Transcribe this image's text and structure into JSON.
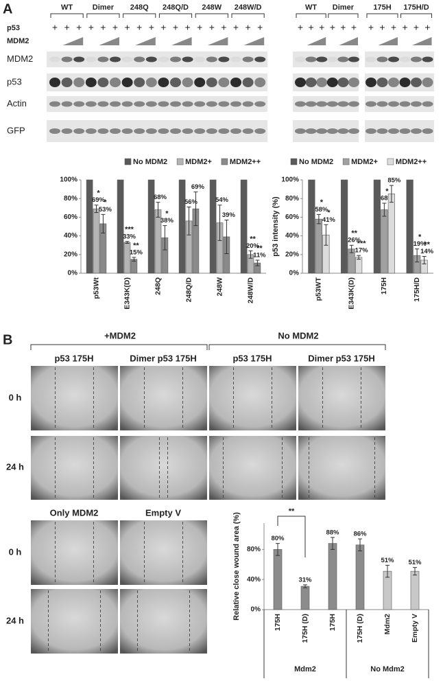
{
  "panel_labels": [
    "A",
    "B"
  ],
  "blot": {
    "treatments": [
      "p53",
      "MDM2"
    ],
    "plus": "+",
    "left_groups": [
      "WT",
      "Dimer",
      "248Q",
      "248Q/D",
      "248W",
      "248W/D"
    ],
    "right_groups": [
      "WT",
      "Dimer",
      "175H",
      "175H/D"
    ],
    "rows": [
      "MDM2",
      "p53",
      "Actin",
      "GFP"
    ]
  },
  "wound": {
    "conditions": [
      "+MDM2",
      "No MDM2"
    ],
    "columns": [
      "p53 175H",
      "Dimer p53 175H",
      "p53 175H",
      "Dimer p53 175H"
    ],
    "times": [
      "0 h",
      "24 h"
    ],
    "lower_columns": [
      "Only MDM2",
      "Empty V"
    ]
  },
  "chart_data": [
    {
      "type": "bar",
      "categories": [
        "p53Wt",
        "E343K(D)",
        "248Q",
        "248Q/D",
        "248W",
        "248W/D"
      ],
      "series": [
        {
          "name": "No MDM2",
          "color": "#5a5a5a",
          "values": [
            100,
            100,
            100,
            100,
            100,
            100
          ]
        },
        {
          "name": "MDM2+",
          "color": "#b4b4b4",
          "values": [
            69,
            33,
            68,
            56,
            54,
            20
          ],
          "errors": [
            4,
            1,
            8,
            15,
            19,
            4
          ],
          "value_labels": [
            "69%",
            "33%",
            "68%",
            "56%",
            "54%",
            "20%"
          ],
          "significance": [
            "*",
            "***",
            null,
            null,
            null,
            "**"
          ]
        },
        {
          "name": "MDM2++",
          "color": "#8a8a8a",
          "values": [
            53,
            15,
            38,
            69,
            39,
            11
          ],
          "errors": [
            10,
            2,
            13,
            18,
            18,
            3
          ],
          "value_labels": [
            "53%",
            "15%",
            "38%",
            "69%",
            "39%",
            "11%"
          ],
          "significance": [
            "*",
            "**",
            "*",
            null,
            null,
            "**"
          ]
        }
      ],
      "ylim": [
        0,
        100
      ],
      "yticks": [
        {
          "value": 0,
          "label": "0%"
        },
        {
          "value": 20,
          "label": "20%"
        },
        {
          "value": 40,
          "label": "40%"
        },
        {
          "value": 60,
          "label": "60%"
        },
        {
          "value": 80,
          "label": "80%"
        },
        {
          "value": 100,
          "label": "100%"
        }
      ]
    },
    {
      "type": "bar",
      "y_label": "p53 intensity (%)",
      "categories": [
        "p53WT",
        "E343K(D)",
        "175H",
        "175H/D"
      ],
      "series": [
        {
          "name": "No MDM2",
          "color": "#5a5a5a",
          "values": [
            100,
            100,
            100,
            100
          ]
        },
        {
          "name": "MDM2+",
          "color": "#a0a0a0",
          "values": [
            58,
            26,
            68,
            19
          ],
          "errors": [
            5,
            4,
            7,
            7
          ],
          "value_labels": [
            "58%",
            "26%",
            "68%",
            "19%"
          ],
          "significance": [
            "*",
            "**",
            "*",
            "*"
          ]
        },
        {
          "name": "MDM2++",
          "color": "#dcdcdc",
          "values": [
            41,
            17,
            85,
            14
          ],
          "errors": [
            11,
            2,
            9,
            4
          ],
          "value_labels": [
            "41%",
            "17%",
            "85%",
            "14%"
          ],
          "significance": [
            "*",
            "***",
            null,
            "**"
          ]
        }
      ],
      "ylim": [
        0,
        100
      ],
      "yticks": [
        {
          "value": 0,
          "label": "0%"
        },
        {
          "value": 20,
          "label": "20%"
        },
        {
          "value": 40,
          "label": "40%"
        },
        {
          "value": 60,
          "label": "60%"
        },
        {
          "value": 80,
          "label": "80%"
        },
        {
          "value": 100,
          "label": "100%"
        }
      ]
    },
    {
      "type": "bar",
      "y_label": "Relative close wound area (%)",
      "categories": [
        "175H",
        "175H (D)",
        "175H",
        "175H (D)",
        "Mdm2",
        "Empty V"
      ],
      "values": [
        80,
        31,
        88,
        86,
        51,
        51
      ],
      "errors": [
        8,
        2,
        8,
        8,
        8,
        5
      ],
      "value_labels": [
        "80%",
        "31%",
        "88%",
        "86%",
        "51%",
        "51%"
      ],
      "colors": [
        "#8c8c8c",
        "#8c8c8c",
        "#8c8c8c",
        "#8c8c8c",
        "#c8c8c8",
        "#c8c8c8"
      ],
      "groups": [
        "Mdm2",
        "No Mdm2"
      ],
      "bracket_label": "**",
      "ylim": [
        0,
        115
      ],
      "yticks": [
        {
          "value": 0,
          "label": "0%"
        },
        {
          "value": 40,
          "label": "40%"
        },
        {
          "value": 80,
          "label": "80%"
        }
      ]
    }
  ]
}
